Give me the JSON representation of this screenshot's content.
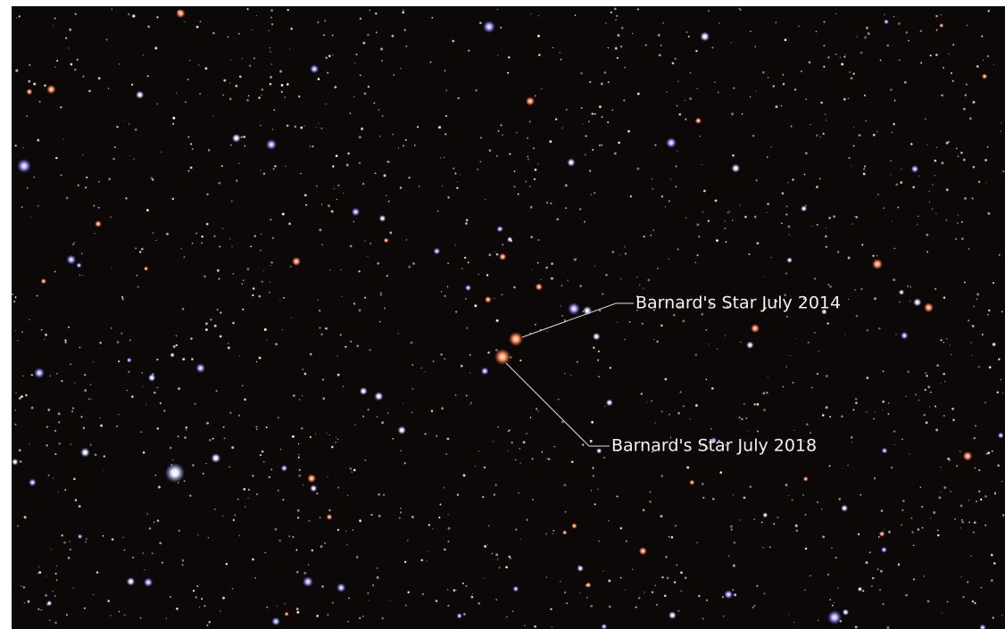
{
  "annotations": [
    {
      "label": "Barnard's Star July 2014"
    },
    {
      "label": "Barnard's Star July 2018"
    }
  ]
}
